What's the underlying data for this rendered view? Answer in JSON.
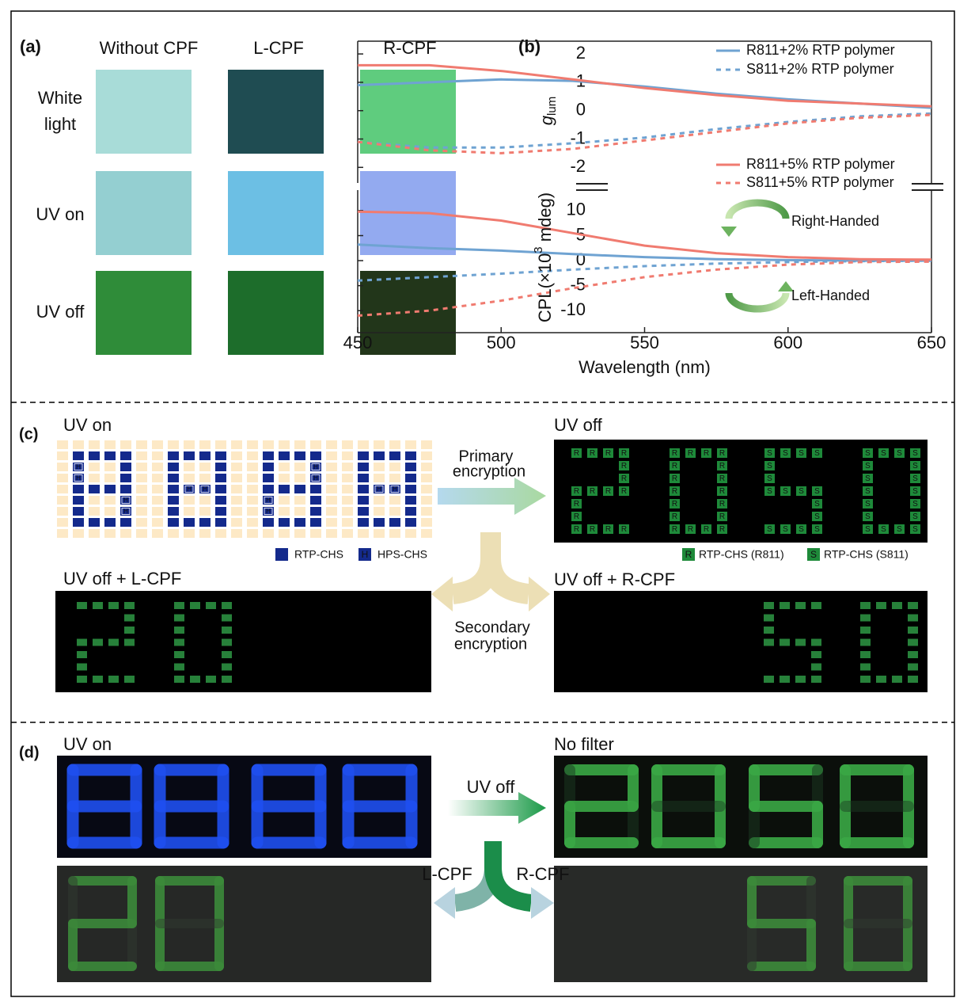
{
  "panel_a": {
    "label": "(a)",
    "columns": [
      "Without CPF",
      "L-CPF",
      "R-CPF"
    ],
    "rows": [
      [
        "White",
        "light"
      ],
      [
        "UV on"
      ],
      [
        "UV off"
      ]
    ]
  },
  "panel_b": {
    "label": "(b)"
  },
  "chart_data": [
    {
      "type": "line",
      "ylabel": "g",
      "ylabel_sub": "lum",
      "x": [
        450,
        475,
        500,
        525,
        550,
        575,
        600,
        625,
        650
      ],
      "xlim": [
        450,
        650
      ],
      "ylim": [
        -2.55,
        2.45
      ],
      "yticks": [
        -2,
        -1,
        0,
        1,
        2
      ],
      "series": [
        {
          "name": "R811+2% RTP polymer",
          "color": "#6fa3d2",
          "linestyle": "solid",
          "values": [
            0.9,
            1.0,
            1.1,
            1.05,
            0.85,
            0.6,
            0.4,
            0.25,
            0.1
          ]
        },
        {
          "name": "S811+2% RTP polymer",
          "color": "#6fa3d2",
          "linestyle": "dashed",
          "values": [
            -1.1,
            -1.3,
            -1.3,
            -1.15,
            -0.95,
            -0.65,
            -0.4,
            -0.2,
            -0.1
          ]
        },
        {
          "name": "R811+5% RTP polymer",
          "color": "#f07b70",
          "linestyle": "solid",
          "values": [
            1.6,
            1.6,
            1.4,
            1.1,
            0.8,
            0.55,
            0.35,
            0.25,
            0.15
          ]
        },
        {
          "name": "S811+5% RTP polymer",
          "color": "#f07b70",
          "linestyle": "dashed",
          "values": [
            -1.1,
            -1.4,
            -1.5,
            -1.35,
            -1.05,
            -0.75,
            -0.45,
            -0.25,
            -0.15
          ]
        }
      ]
    },
    {
      "type": "line",
      "ylabel": "CPL(×10",
      "ylabel_sup": "3",
      "ylabel_end": " mdeg)",
      "xlabel": "Wavelength (nm)",
      "x": [
        450,
        475,
        500,
        525,
        550,
        575,
        600,
        625,
        650
      ],
      "xlim": [
        450,
        650
      ],
      "xticks": [
        450,
        500,
        550,
        600,
        650
      ],
      "ylim": [
        -14.4,
        14.1
      ],
      "yticks": [
        -10,
        -5,
        0,
        5,
        10
      ],
      "annotations": [
        "Right-Handed",
        "Left-Handed"
      ],
      "series": [
        {
          "color": "#6fa3d2",
          "linestyle": "solid",
          "values": [
            3.2,
            2.5,
            2.0,
            1.3,
            0.7,
            0.3,
            0.1,
            0,
            0
          ]
        },
        {
          "color": "#6fa3d2",
          "linestyle": "dashed",
          "values": [
            -4,
            -3.3,
            -2.6,
            -1.8,
            -1.1,
            -0.6,
            -0.3,
            -0.1,
            0
          ]
        },
        {
          "color": "#f07b70",
          "linestyle": "solid",
          "values": [
            9.8,
            9.5,
            8,
            5.5,
            3,
            1.5,
            0.7,
            0.3,
            0.2
          ]
        },
        {
          "color": "#f07b70",
          "linestyle": "dashed",
          "values": [
            -11,
            -10,
            -8,
            -5.5,
            -3.3,
            -1.8,
            -0.8,
            -0.3,
            -0.2
          ]
        }
      ]
    }
  ],
  "panel_c": {
    "label": "(c)",
    "uv_on": "UV on",
    "uv_off": "UV off",
    "uv_off_l": "UV off + L-CPF",
    "uv_off_r": "UV off + R-CPF",
    "primary": [
      "Primary",
      "encryption"
    ],
    "secondary": [
      "Secondary",
      "encryption"
    ],
    "legend_left": [
      {
        "label": "RTP-CHS"
      },
      {
        "letter": "H",
        "label": "HPS-CHS"
      }
    ],
    "legend_right": [
      {
        "letter": "R",
        "label": "RTP-CHS (R811)"
      },
      {
        "letter": "S",
        "label": "RTP-CHS (S811)"
      }
    ]
  },
  "panel_d": {
    "label": "(d)",
    "uv_on": "UV on",
    "no_filter": "No filter",
    "uv_off": "UV off",
    "l_cpf": "L-CPF",
    "r_cpf": "R-CPF"
  }
}
